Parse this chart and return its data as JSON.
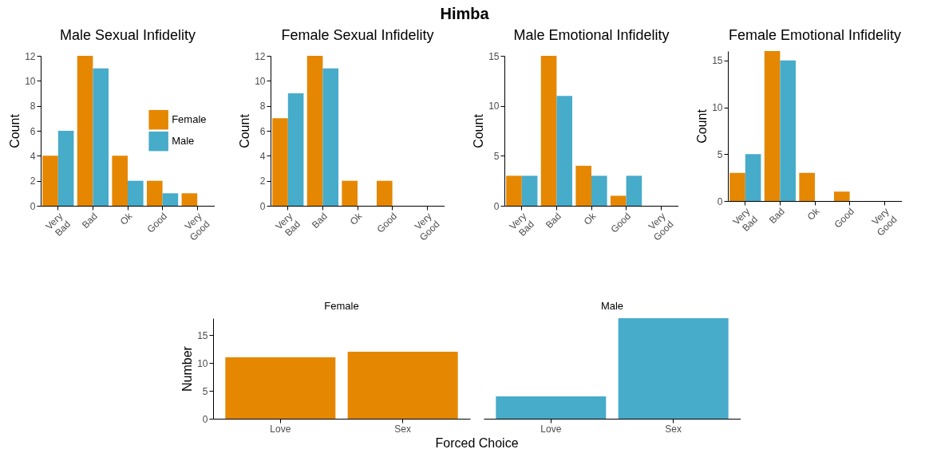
{
  "chart_data": [
    {
      "type": "other",
      "title": "Himba"
    },
    {
      "type": "bar",
      "title": "Male Sexual Infidelity",
      "ylabel": "Count",
      "categories": [
        "Very Bad",
        "Bad",
        "Ok",
        "Good",
        "Very Good"
      ],
      "ylim": [
        0,
        12
      ],
      "yticks": [
        0,
        2,
        4,
        6,
        8,
        10,
        12
      ],
      "legend": "right",
      "series": [
        {
          "name": "Female",
          "color": "#e58700",
          "values": [
            4,
            12,
            4,
            2,
            1
          ]
        },
        {
          "name": "Male",
          "color": "#47abca",
          "values": [
            6,
            11,
            2,
            1,
            0
          ]
        }
      ]
    },
    {
      "type": "bar",
      "title": "Female Sexual Infidelity",
      "ylabel": "Count",
      "categories": [
        "Very Bad",
        "Bad",
        "Ok",
        "Good",
        "Very Good"
      ],
      "ylim": [
        0,
        12
      ],
      "yticks": [
        0,
        2,
        4,
        6,
        8,
        10,
        12
      ],
      "series": [
        {
          "color": "#e58700",
          "values": [
            7,
            12,
            2,
            2,
            0
          ]
        },
        {
          "color": "#47abca",
          "values": [
            9,
            11,
            0,
            0,
            0
          ]
        }
      ]
    },
    {
      "type": "bar",
      "title": "Male Emotional Infidelity",
      "ylabel": "Count",
      "categories": [
        "Very Bad",
        "Bad",
        "Ok",
        "Good",
        "Very Good"
      ],
      "ylim": [
        0,
        15
      ],
      "yticks": [
        0,
        5,
        10,
        15
      ],
      "series": [
        {
          "color": "#e58700",
          "values": [
            3,
            15,
            4,
            1,
            0
          ]
        },
        {
          "color": "#47abca",
          "values": [
            3,
            11,
            3,
            3,
            0
          ]
        }
      ]
    },
    {
      "type": "bar",
      "title": "Female Emotional Infidelity",
      "ylabel": "Count",
      "categories": [
        "Very Bad",
        "Bad",
        "Ok",
        "Good",
        "Very Good"
      ],
      "ylim": [
        0,
        16
      ],
      "yticks": [
        0,
        5,
        10,
        15
      ],
      "series": [
        {
          "color": "#e58700",
          "values": [
            3,
            16,
            3,
            1,
            0
          ]
        },
        {
          "color": "#47abca",
          "values": [
            5,
            15,
            0,
            0,
            0
          ]
        }
      ]
    },
    {
      "type": "bar",
      "title": "Female",
      "xlabel": "Forced Choice",
      "ylabel": "Number",
      "categories": [
        "Love",
        "Sex"
      ],
      "values": [
        11,
        12
      ],
      "color": "#e58700",
      "ylim": [
        0,
        18
      ],
      "yticks": [
        0,
        5,
        10,
        15
      ]
    },
    {
      "type": "bar",
      "title": "Male",
      "categories": [
        "Love",
        "Sex"
      ],
      "values": [
        4,
        18
      ],
      "color": "#47abca",
      "ylim": [
        0,
        18
      ],
      "yticks": [
        0,
        5,
        10,
        15
      ],
      "tick_labels": "x"
    }
  ]
}
